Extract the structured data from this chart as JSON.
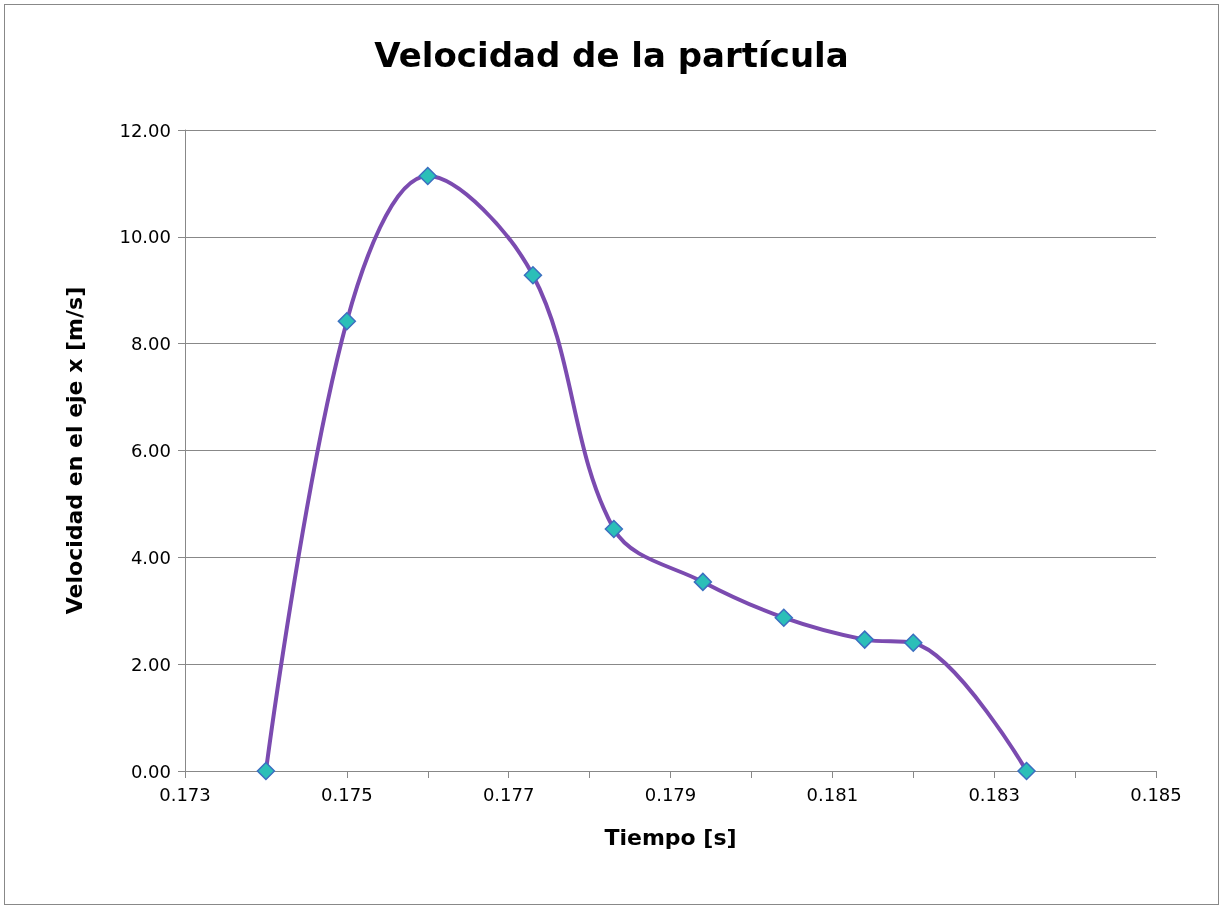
{
  "chart_data": {
    "type": "line",
    "title": "Velocidad de la partícula",
    "xlabel": "Tiempo [s]",
    "ylabel": "Velocidad en el eje x [m/s]",
    "series": [
      {
        "color": "#7b4bb0",
        "x": [
          0.174,
          0.175,
          0.176,
          0.1773,
          0.1783,
          0.1794,
          0.1804,
          0.1814,
          0.182,
          0.1834
        ],
        "values": [
          0,
          8.42,
          11.14,
          9.28,
          4.53,
          3.54,
          2.87,
          2.46,
          2.4,
          0
        ]
      }
    ],
    "xlim": [
      0.173,
      0.185
    ],
    "xticks": [
      0.173,
      {
        "value": 0.174,
        "label": null
      },
      0.175,
      {
        "value": 0.176,
        "label": null
      },
      0.177,
      {
        "value": 0.178,
        "label": null
      },
      0.179,
      {
        "value": 0.18,
        "label": null
      },
      0.181,
      {
        "value": 0.182,
        "label": null
      },
      0.183,
      {
        "value": 0.184,
        "label": null
      },
      0.185
    ],
    "ylim": [
      0,
      12
    ],
    "yticks": [
      {
        "value": 0,
        "label": "0.00"
      },
      {
        "value": 2,
        "label": "2.00"
      },
      {
        "value": 4,
        "label": "4.00"
      },
      {
        "value": 6,
        "label": "6.00"
      },
      {
        "value": 8,
        "label": "8.00"
      },
      {
        "value": 10,
        "label": "10.00"
      },
      {
        "value": 12,
        "label": "12.00"
      }
    ],
    "grid": "y",
    "marker": "diamond",
    "line_style": "solid"
  }
}
